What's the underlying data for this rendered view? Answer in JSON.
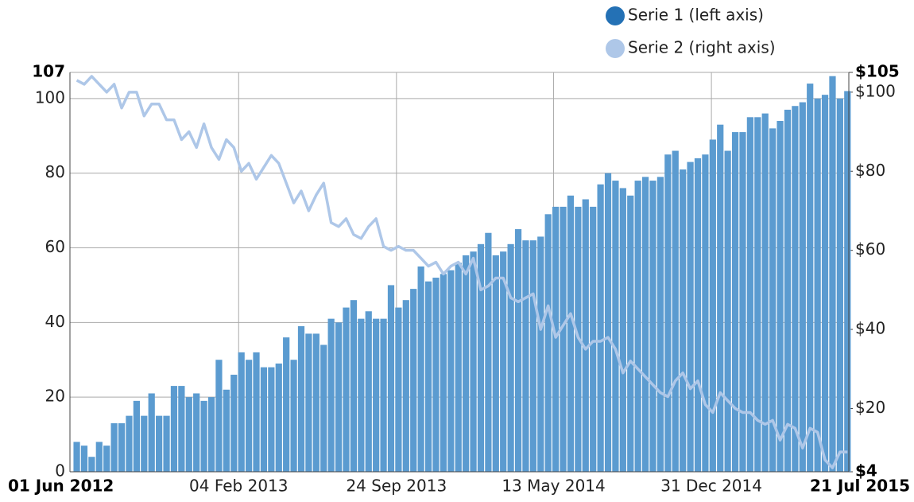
{
  "chart_data": {
    "type": "bar-line",
    "x": [
      "2012-06-11",
      "2012-06-22",
      "2012-07-03",
      "2012-07-14",
      "2012-07-25",
      "2012-08-05",
      "2012-08-16",
      "2012-08-27",
      "2012-09-07",
      "2012-09-18",
      "2012-09-29",
      "2012-10-10",
      "2012-10-21",
      "2012-11-01",
      "2012-11-12",
      "2012-11-23",
      "2012-12-04",
      "2012-12-15",
      "2012-12-26",
      "2013-01-06",
      "2013-01-17",
      "2013-01-28",
      "2013-02-08",
      "2013-02-19",
      "2013-03-02",
      "2013-03-13",
      "2013-03-24",
      "2013-04-04",
      "2013-04-15",
      "2013-04-26",
      "2013-05-07",
      "2013-05-18",
      "2013-05-29",
      "2013-06-09",
      "2013-06-20",
      "2013-07-01",
      "2013-07-12",
      "2013-07-23",
      "2013-08-03",
      "2013-08-14",
      "2013-08-25",
      "2013-09-05",
      "2013-09-16",
      "2013-09-27",
      "2013-10-08",
      "2013-10-19",
      "2013-10-30",
      "2013-11-10",
      "2013-11-21",
      "2013-12-02",
      "2013-12-13",
      "2013-12-24",
      "2014-01-04",
      "2014-01-15",
      "2014-01-26",
      "2014-02-06",
      "2014-02-17",
      "2014-02-28",
      "2014-03-11",
      "2014-03-22",
      "2014-04-02",
      "2014-04-13",
      "2014-04-24",
      "2014-05-05",
      "2014-05-16",
      "2014-05-27",
      "2014-06-07",
      "2014-06-18",
      "2014-06-29",
      "2014-07-10",
      "2014-07-21",
      "2014-08-01",
      "2014-08-12",
      "2014-08-23",
      "2014-09-03",
      "2014-09-14",
      "2014-09-25",
      "2014-10-06",
      "2014-10-17",
      "2014-10-28",
      "2014-11-08",
      "2014-11-19",
      "2014-11-30",
      "2014-12-11",
      "2014-12-22",
      "2015-01-02",
      "2015-01-13",
      "2015-01-24",
      "2015-02-04",
      "2015-02-15",
      "2015-02-26",
      "2015-03-09",
      "2015-03-20",
      "2015-03-31",
      "2015-04-11",
      "2015-04-22",
      "2015-05-03",
      "2015-05-14",
      "2015-05-25",
      "2015-06-05",
      "2015-06-16",
      "2015-06-27",
      "2015-07-08",
      "2015-07-19"
    ],
    "series": [
      {
        "name": "Serie 1 (left axis)",
        "type": "bar",
        "color": "#5b9bd0",
        "legend_color": "#2471b5",
        "values": [
          8,
          7,
          4,
          8,
          7,
          13,
          13,
          15,
          19,
          15,
          21,
          15,
          15,
          23,
          23,
          20,
          21,
          19,
          20,
          30,
          22,
          26,
          32,
          30,
          32,
          28,
          28,
          29,
          36,
          30,
          39,
          37,
          37,
          34,
          41,
          40,
          44,
          46,
          41,
          43,
          41,
          41,
          50,
          44,
          46,
          49,
          55,
          51,
          52,
          53,
          54,
          56,
          58,
          59,
          61,
          64,
          58,
          59,
          61,
          65,
          62,
          62,
          63,
          69,
          71,
          71,
          74,
          71,
          73,
          71,
          77,
          80,
          78,
          76,
          74,
          78,
          79,
          78,
          79,
          85,
          86,
          81,
          83,
          84,
          85,
          89,
          93,
          86,
          91,
          91,
          95,
          95,
          96,
          92,
          94,
          97,
          98,
          99,
          104,
          100,
          101,
          106,
          100,
          102
        ]
      },
      {
        "name": "Serie 2 (right axis)",
        "type": "line",
        "axis": "y2",
        "color": "#aec7e8",
        "values": [
          103,
          102,
          104,
          102,
          100,
          102,
          96,
          100,
          100,
          94,
          97,
          97,
          93,
          93,
          88,
          90,
          86,
          92,
          86,
          83,
          88,
          86,
          80,
          82,
          78,
          81,
          84,
          82,
          77,
          72,
          75,
          70,
          74,
          77,
          67,
          66,
          68,
          64,
          63,
          66,
          68,
          61,
          60,
          61,
          60,
          60,
          58,
          56,
          57,
          54,
          56,
          57,
          54,
          58,
          50,
          51,
          53,
          53,
          48,
          47,
          48,
          49,
          40,
          46,
          38,
          41,
          44,
          38,
          35,
          37,
          37,
          38,
          35,
          29,
          32,
          30,
          28,
          26,
          24,
          23,
          27,
          29,
          25,
          27,
          21,
          19,
          24,
          22,
          20,
          19,
          19,
          17,
          16,
          17,
          12,
          16,
          15,
          10,
          15,
          14,
          7,
          5,
          9,
          9
        ]
      }
    ],
    "xlim": [
      "2012-06-01",
      "2015-07-21"
    ],
    "xticks": [
      {
        "value": "2012-06-01",
        "label": "01 Jun 2012"
      },
      {
        "value": "2013-02-04",
        "label": "04 Feb 2013"
      },
      {
        "value": "2013-09-24",
        "label": "24 Sep 2013"
      },
      {
        "value": "2014-05-13",
        "label": "13 May 2014"
      },
      {
        "value": "2014-12-31",
        "label": "31 Dec 2014"
      },
      {
        "value": "2015-07-21",
        "label": "21 Jul 2015"
      }
    ],
    "ylim": [
      0,
      107
    ],
    "yticks": [
      0,
      20,
      40,
      60,
      80,
      100,
      107
    ],
    "y2lim": [
      4,
      105
    ],
    "y2ticks": [
      {
        "value": 4,
        "label": "$4"
      },
      {
        "value": 20,
        "label": "$20"
      },
      {
        "value": 40,
        "label": "$40"
      },
      {
        "value": 60,
        "label": "$60"
      },
      {
        "value": 80,
        "label": "$80"
      },
      {
        "value": 100,
        "label": "$100"
      },
      {
        "value": 105,
        "label": "$105"
      }
    ],
    "grid": true,
    "legend": "top-right"
  }
}
